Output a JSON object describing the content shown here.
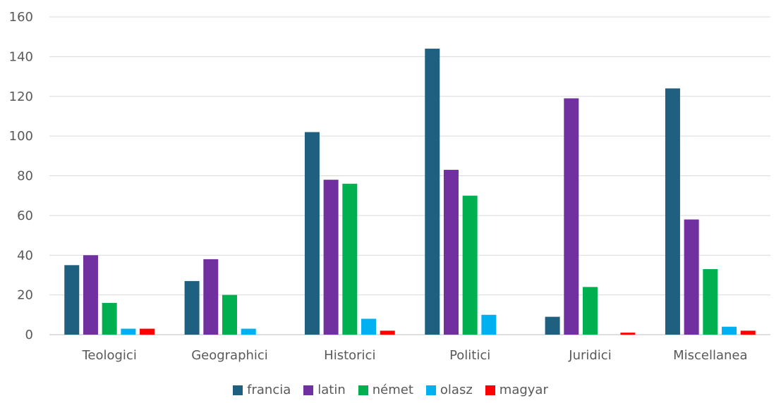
{
  "chart_data": {
    "type": "bar",
    "title": "",
    "xlabel": "",
    "ylabel": "",
    "ylim": [
      0,
      160
    ],
    "yticks": [
      0,
      20,
      40,
      60,
      80,
      100,
      120,
      140,
      160
    ],
    "grid": true,
    "legend_position": "bottom",
    "categories": [
      "Teologici",
      "Geographici",
      "Historici",
      "Politici",
      "Juridici",
      "Miscellanea"
    ],
    "series": [
      {
        "name": "francia",
        "color": "#1F5F80",
        "values": [
          35,
          27,
          102,
          144,
          9,
          124
        ]
      },
      {
        "name": "latin",
        "color": "#7030A0",
        "values": [
          40,
          38,
          78,
          83,
          119,
          58
        ]
      },
      {
        "name": "német",
        "color": "#00B050",
        "values": [
          16,
          20,
          76,
          70,
          24,
          33
        ]
      },
      {
        "name": "olasz",
        "color": "#00B0F0",
        "values": [
          3,
          3,
          8,
          10,
          0,
          4
        ]
      },
      {
        "name": "magyar",
        "color": "#FF0000",
        "values": [
          3,
          0,
          2,
          0,
          1,
          2
        ]
      }
    ]
  }
}
